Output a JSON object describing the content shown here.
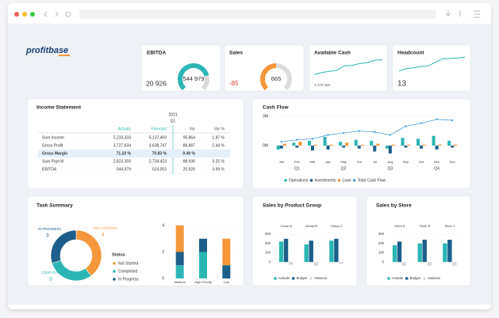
{
  "logo": "profitbase",
  "kpis": {
    "ebitda": {
      "title": "EBITDA",
      "value": "20 926",
      "gauge": {
        "value": 544979,
        "label": "544 979",
        "lim": [
          0,
          700000
        ],
        "color": "#2cb5b5"
      }
    },
    "sales": {
      "title": "Sales",
      "value": "-85",
      "gauge": {
        "value": 665,
        "label": "665",
        "lim": [
          0,
          1330
        ],
        "color": "#f5973a"
      }
    },
    "available_cash": {
      "title": "Available Cash",
      "value": "4 475 569",
      "line": {
        "values": [
          2,
          3,
          3.5,
          4,
          6,
          6.2,
          7,
          7.4,
          8.5,
          8.8
        ],
        "ylim": [
          0,
          10
        ],
        "color": "#2cb5b5"
      }
    },
    "headcount": {
      "title": "Headcount",
      "value": "13",
      "line": {
        "values": [
          3,
          4,
          4.5,
          5,
          5.2,
          7,
          8.5,
          8.6,
          8.8,
          9.2
        ],
        "ylim": [
          0,
          10
        ],
        "color": "#2cb5b5"
      }
    }
  },
  "income_statement": {
    "title": "Income Statement",
    "year": "2021",
    "period": "Q1",
    "columns": [
      "Actuals",
      "Forecast",
      "Var",
      "Var %"
    ],
    "rows": [
      {
        "label": "Sum Income",
        "cells": [
          "5,233,333",
          "5,137,469",
          "95,864",
          "1.87 %"
        ]
      },
      {
        "label": "Gross Profit",
        "cells": [
          "3,727,634",
          "3,638,747",
          "88,887",
          "2.44 %"
        ]
      },
      {
        "label": "Gross Margin",
        "cells": [
          "71.23 %",
          "70.83 %",
          "0.40 %",
          ""
        ],
        "highlighted": true
      },
      {
        "label": "Sum Payroll",
        "cells": [
          "2,823,359",
          "2,734,423",
          "88,936",
          "3.25 %"
        ]
      },
      {
        "label": "EBITDA",
        "cells": [
          "544,979",
          "524,053",
          "20,926",
          "3.99 %"
        ]
      }
    ]
  },
  "cash_flow": {
    "type": "bar",
    "title": "Cash Flow",
    "categories": [
      "Jan",
      "Feb",
      "Mar",
      "Apr",
      "May",
      "Jun",
      "Jul",
      "Aug",
      "Sep",
      "Oct",
      "Nov",
      "Dec"
    ],
    "quarters": [
      "Q1",
      "Q2",
      "Q3",
      "Q4"
    ],
    "ylim": [
      -1.25,
      3.5
    ],
    "yticks": [
      {
        "value": 3,
        "label": "3M"
      },
      {
        "value": 0,
        "label": "0M"
      }
    ],
    "series": [
      {
        "name": "Operations",
        "color": "#2cb5b5",
        "values": [
          -0.4,
          0.3,
          0.5,
          0.9,
          0.4,
          0.6,
          0.5,
          -0.3,
          0.8,
          0.7,
          1.0,
          0.5
        ]
      },
      {
        "name": "Investments",
        "color": "#1d5f8a",
        "values": [
          -0.3,
          -0.2,
          -0.5,
          -0.4,
          -0.2,
          -0.3,
          -0.6,
          -0.8,
          -0.2,
          -0.3,
          -0.4,
          -0.2
        ]
      },
      {
        "name": "Loan",
        "color": "#f5973a",
        "values": [
          0.2,
          0.4,
          0.1,
          0.1,
          0.3,
          0.1,
          0.2,
          0.1,
          0.1,
          0.1,
          0.1,
          0.1
        ]
      },
      {
        "name": "Total Cash Flow",
        "type": "line",
        "color": "#4ba3d9",
        "values": [
          0.4,
          0.6,
          0.7,
          1.1,
          1.3,
          1.5,
          1.4,
          1.1,
          2.0,
          2.3,
          2.7,
          2.6
        ]
      }
    ]
  },
  "task_summary": {
    "title": "Task Summary",
    "donut": {
      "type": "pie",
      "legend_title": "Status",
      "categories": [
        "Not Started",
        "Completed",
        "In Progress"
      ],
      "labels": [
        "NOT STARTED",
        "COMPLETED",
        "IN PROGRESS"
      ],
      "values": [
        4,
        3,
        3
      ],
      "colors": [
        "#f5973a",
        "#2cb5b5",
        "#1d5f8a"
      ]
    },
    "priority": {
      "type": "bar",
      "stacked": true,
      "categories": [
        "Medium",
        "High Priority",
        "Low"
      ],
      "ylim": [
        0,
        4
      ],
      "yticks": [
        0,
        2,
        4
      ],
      "series": [
        {
          "color": "#2cb5b5",
          "values": [
            1,
            2,
            0
          ]
        },
        {
          "color": "#1d5f8a",
          "values": [
            1,
            1,
            1
          ]
        },
        {
          "color": "#f5973a",
          "values": [
            2,
            0,
            2
          ]
        }
      ]
    }
  },
  "sales_by_product_group": {
    "type": "bar",
    "title": "Sales by Product Group",
    "categories": [
      "Group A",
      "Group B",
      "Group C"
    ],
    "ylim": [
      -50,
      300
    ],
    "yticks": [
      0,
      100,
      200,
      300
    ],
    "series": [
      {
        "name": "Actuals",
        "color": "#2cb5b5",
        "values": [
          220,
          190,
          230
        ]
      },
      {
        "name": "Budget",
        "color": "#1d5f8a",
        "values": [
          250,
          230,
          250
        ]
      },
      {
        "name": "Variance",
        "color": "#d8dadd",
        "values": [
          -30,
          -40,
          -20
        ]
      }
    ]
  },
  "sales_by_store": {
    "type": "bar",
    "title": "Sales by Store",
    "categories": [
      "Store A",
      "Store B",
      "Store C"
    ],
    "ylim": [
      -50,
      300
    ],
    "yticks": [
      0,
      100,
      200,
      300
    ],
    "series": [
      {
        "name": "Actuals",
        "color": "#2cb5b5",
        "values": [
          180,
          200,
          200
        ]
      },
      {
        "name": "Budget",
        "color": "#1d5f8a",
        "values": [
          220,
          240,
          240
        ]
      },
      {
        "name": "Variance",
        "color": "#d8dadd",
        "values": [
          -40,
          -40,
          -40
        ]
      }
    ]
  }
}
